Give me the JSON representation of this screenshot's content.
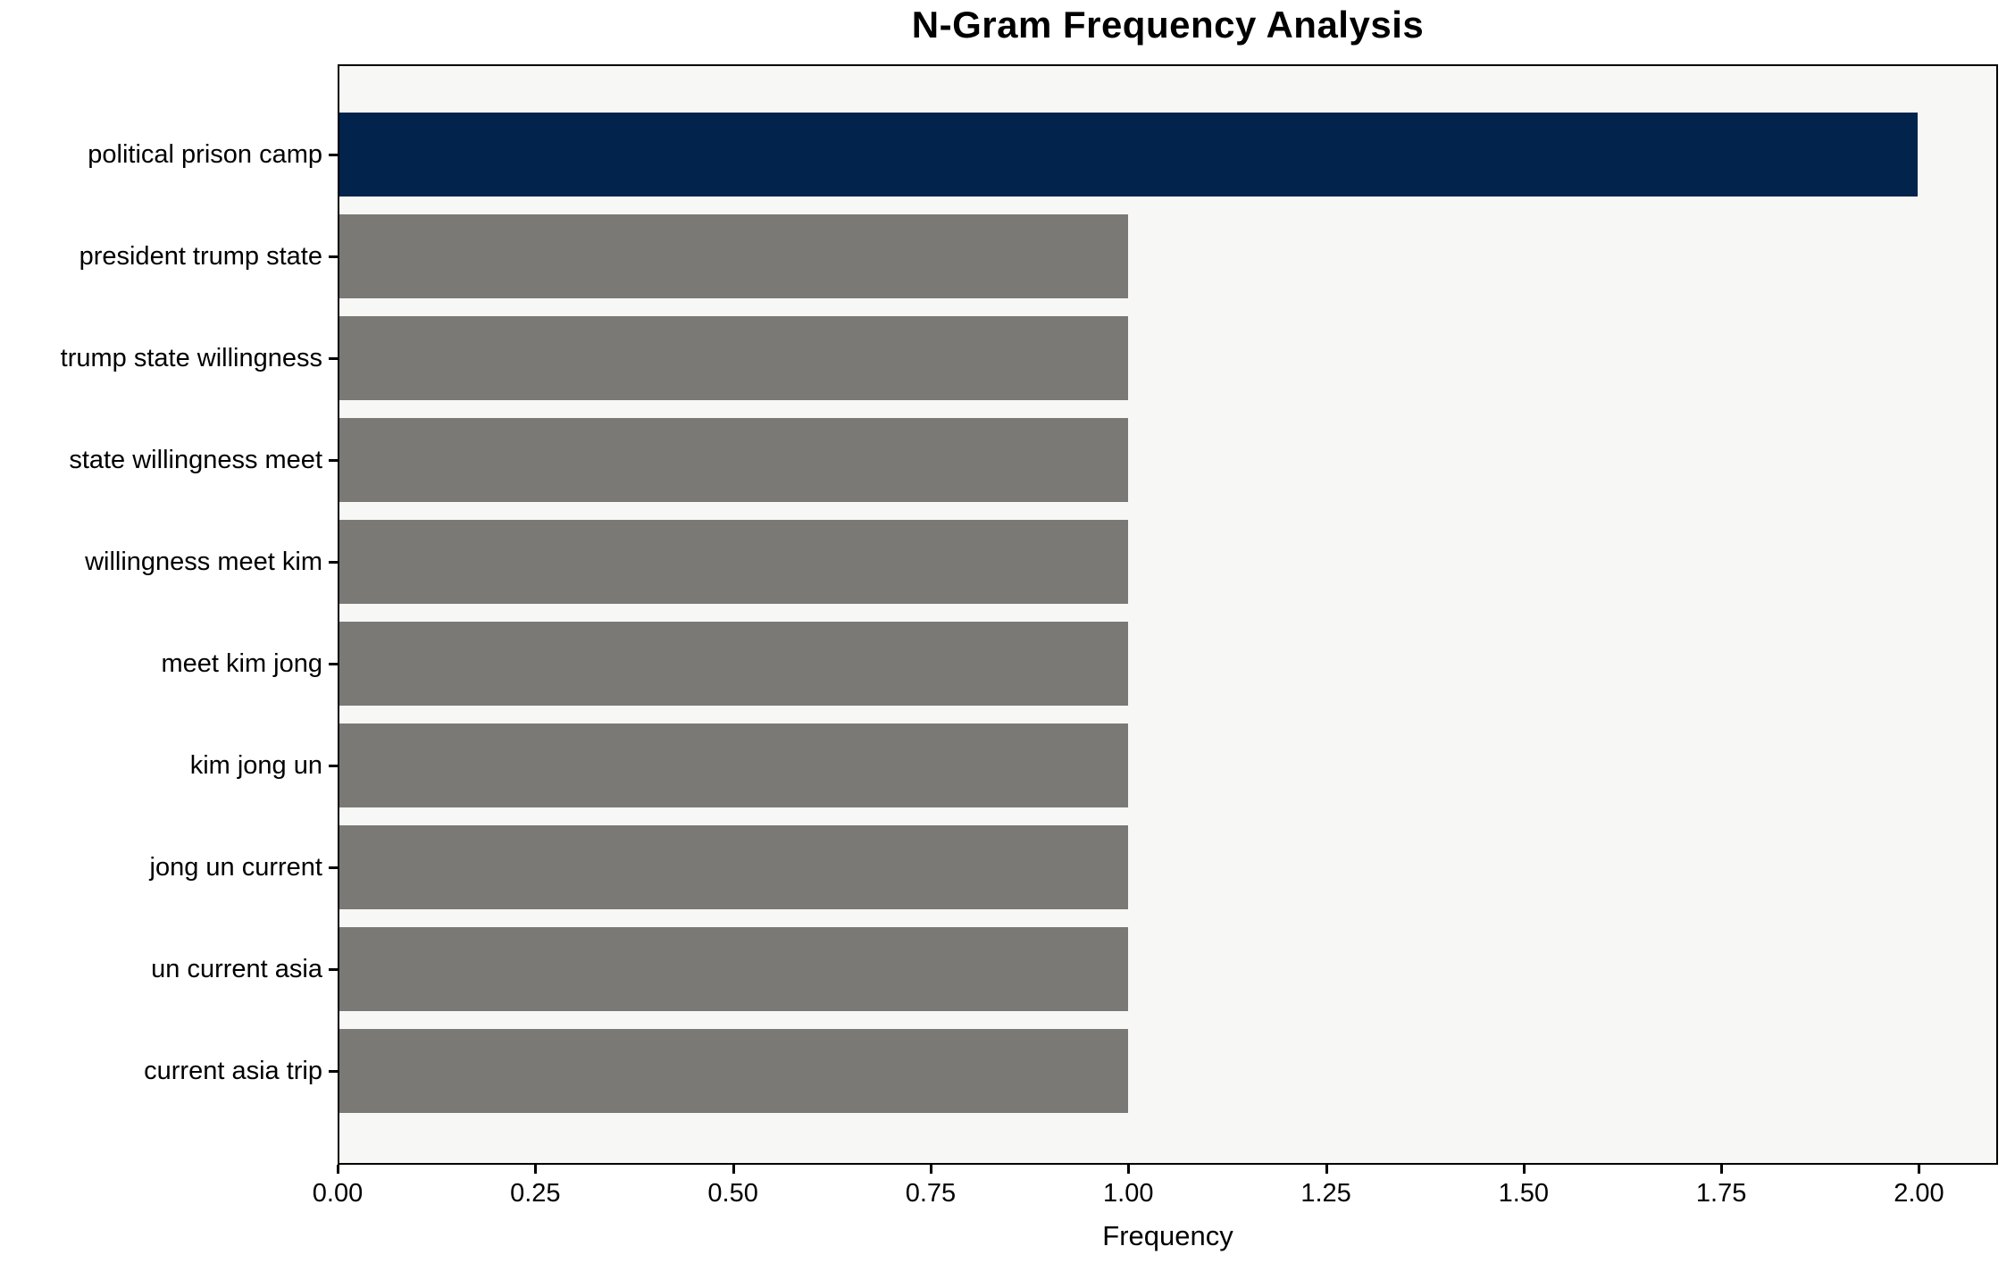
{
  "chart_data": {
    "type": "bar",
    "orientation": "horizontal",
    "title": "N-Gram Frequency Analysis",
    "xlabel": "Frequency",
    "ylabel": "",
    "categories": [
      "political prison camp",
      "president trump state",
      "trump state willingness",
      "state willingness meet",
      "willingness meet kim",
      "meet kim jong",
      "kim jong un",
      "jong un current",
      "un current asia",
      "current asia trip"
    ],
    "values": [
      2,
      1,
      1,
      1,
      1,
      1,
      1,
      1,
      1,
      1
    ],
    "bar_colors": [
      "#02234c",
      "#7a7975",
      "#7a7975",
      "#7a7975",
      "#7a7975",
      "#7a7975",
      "#7a7975",
      "#7a7975",
      "#7a7975",
      "#7a7975"
    ],
    "xlim": [
      0,
      2.1
    ],
    "xticks": [
      0,
      0.25,
      0.5,
      0.75,
      1.0,
      1.25,
      1.5,
      1.75,
      2.0
    ],
    "xtick_labels": [
      "0.00",
      "0.25",
      "0.50",
      "0.75",
      "1.00",
      "1.25",
      "1.50",
      "1.75",
      "2.00"
    ],
    "grid": false,
    "legend_position": "none",
    "colors": {
      "highlight_bar": "#02234c",
      "default_bar": "#7a7975",
      "plot_background": "#f7f7f5",
      "page_background": "#ffffff",
      "axis": "#000000"
    }
  }
}
